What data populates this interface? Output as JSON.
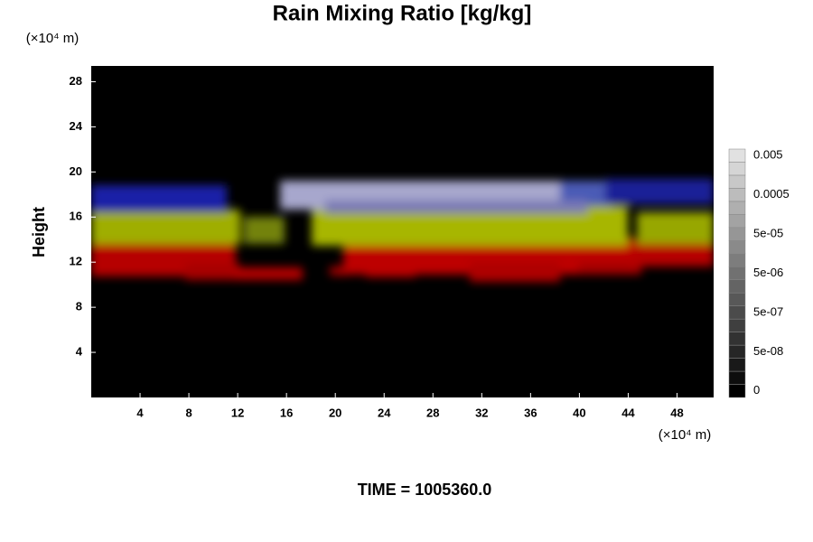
{
  "chart_data": {
    "type": "heatmap",
    "title": "Rain Mixing Ratio [kg/kg]",
    "y_label": "Height",
    "y_units": "(×10⁴ m)",
    "x_units": "(×10⁴ m)",
    "xlim": [
      0,
      51
    ],
    "xticks": [
      4,
      8,
      12,
      16,
      20,
      24,
      28,
      32,
      36,
      40,
      44,
      48
    ],
    "ylim": [
      0,
      29.4
    ],
    "yticks": [
      4,
      8,
      12,
      16,
      20,
      24,
      28
    ],
    "colorbar_labels": [
      "0",
      "5e-08",
      "5e-07",
      "5e-06",
      "5e-05",
      "0.0005",
      "0.005"
    ],
    "time_label": "TIME = 1005360.0"
  }
}
